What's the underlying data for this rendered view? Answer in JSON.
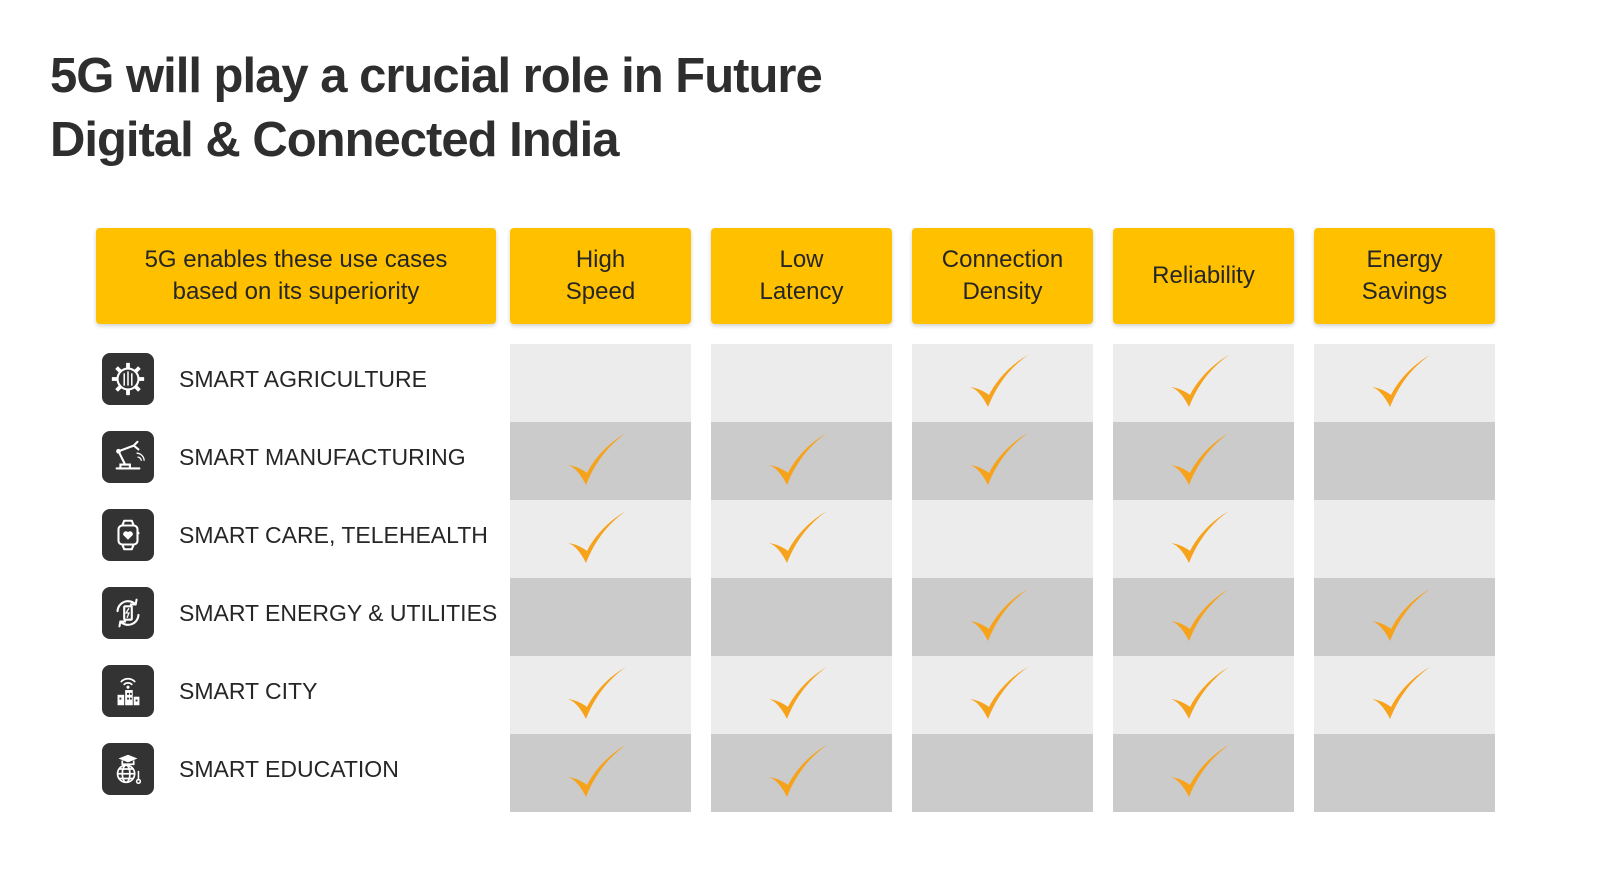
{
  "title": {
    "line1": "5G will play a crucial role in Future",
    "line2": "Digital & Connected India"
  },
  "header": {
    "intro_line1": "5G enables these use cases",
    "intro_line2": "based on its superiority",
    "columns": [
      {
        "line1": "High",
        "line2": "Speed"
      },
      {
        "line1": "Low",
        "line2": "Latency"
      },
      {
        "line1": "Connection",
        "line2": "Density"
      },
      {
        "line1": "Reliability",
        "line2": ""
      },
      {
        "line1": "Energy",
        "line2": "Savings"
      }
    ]
  },
  "colors": {
    "accent": "#ffc000",
    "check": "#f7a21b",
    "row_light": "#ececec",
    "row_dark": "#cbcbcb",
    "icon_bg": "#333333"
  },
  "rows": [
    {
      "label": "SMART AGRICULTURE",
      "icon": "agriculture-gear-icon",
      "checks": [
        false,
        false,
        true,
        true,
        true
      ]
    },
    {
      "label": "SMART MANUFACTURING",
      "icon": "robot-arm-icon",
      "checks": [
        true,
        true,
        true,
        true,
        false
      ]
    },
    {
      "label": "SMART CARE, TELEHEALTH",
      "icon": "smartwatch-heart-icon",
      "checks": [
        true,
        true,
        false,
        true,
        false
      ]
    },
    {
      "label": "SMART ENERGY & UTILITIES",
      "icon": "energy-cycle-icon",
      "checks": [
        false,
        false,
        true,
        true,
        true
      ]
    },
    {
      "label": "SMART CITY",
      "icon": "city-wifi-icon",
      "checks": [
        true,
        true,
        true,
        true,
        true
      ]
    },
    {
      "label": "SMART EDUCATION",
      "icon": "graduation-globe-icon",
      "checks": [
        true,
        true,
        false,
        true,
        false
      ]
    }
  ]
}
